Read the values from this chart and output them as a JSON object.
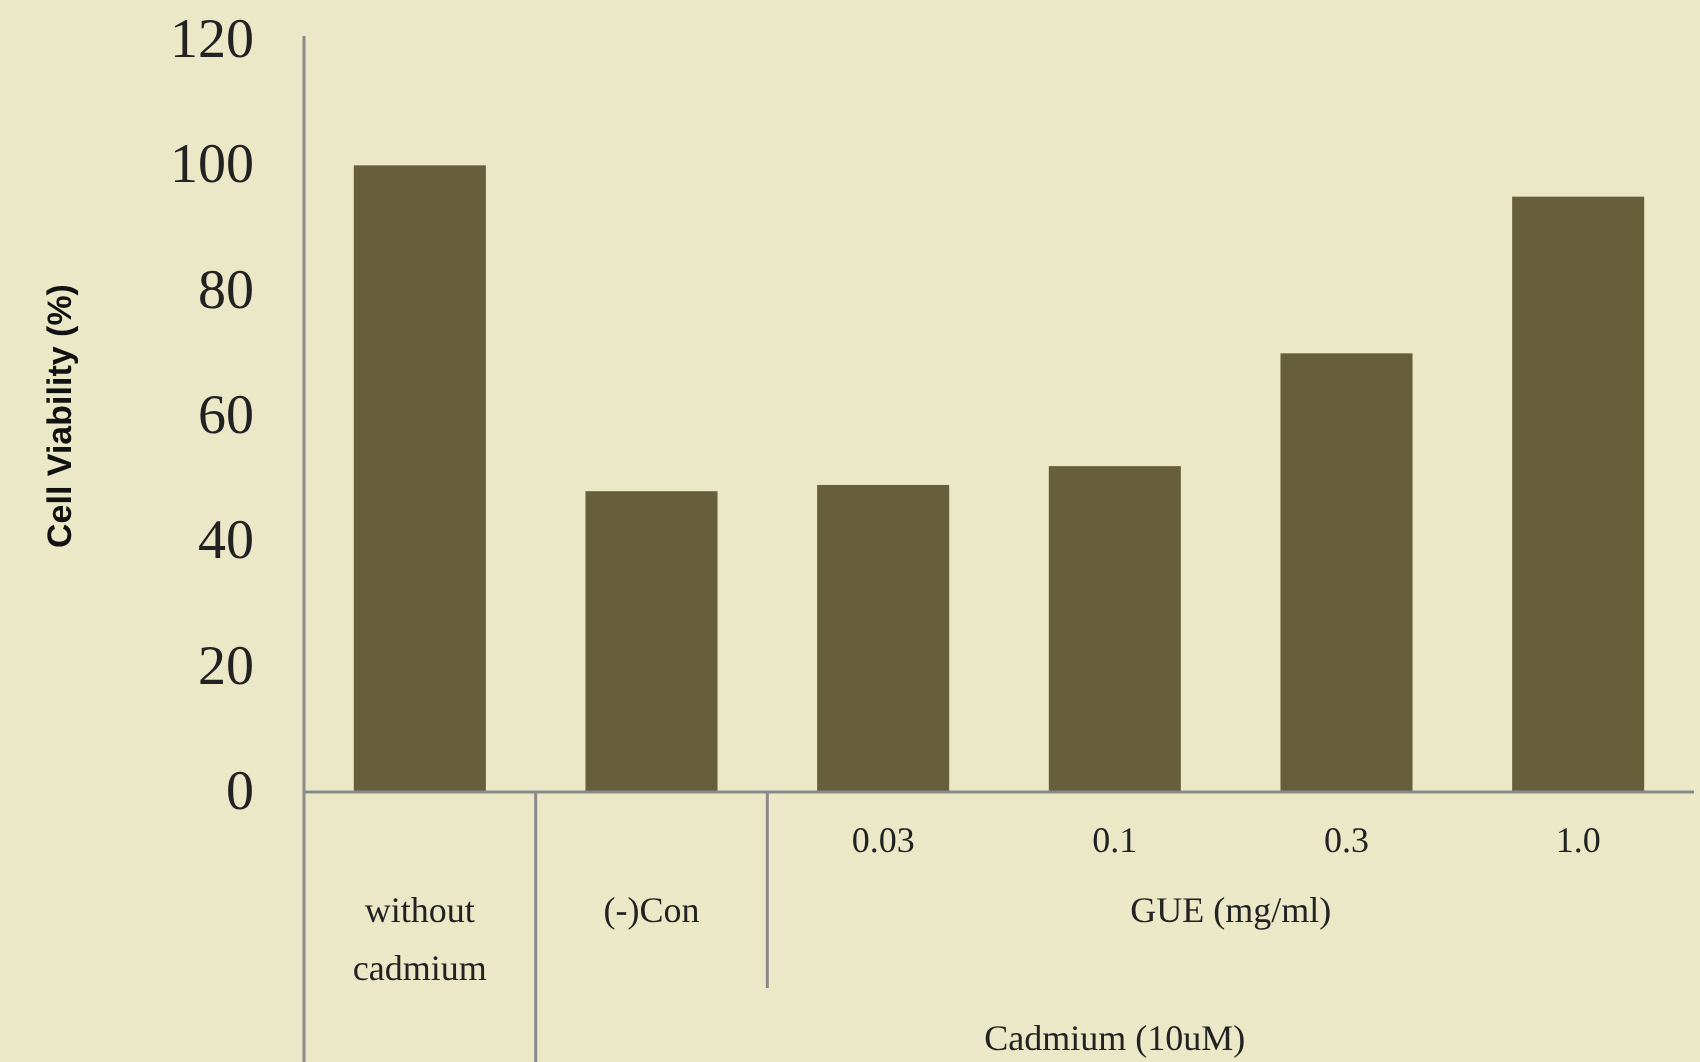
{
  "chart_data": {
    "type": "bar",
    "ylabel": "Cell Viability (%)",
    "categories": [
      "without cadmium",
      "(-)Con",
      "0.03",
      "0.1",
      "0.3",
      "1.0"
    ],
    "values": [
      100,
      48,
      49,
      52,
      70,
      95
    ],
    "color": "#675f3b",
    "ylim": [
      0,
      120
    ],
    "yticks": [
      0,
      20,
      40,
      60,
      80,
      100,
      120
    ],
    "annotations": [
      "GUE (mg/ml)",
      "Cadmium (10uM)"
    ]
  }
}
